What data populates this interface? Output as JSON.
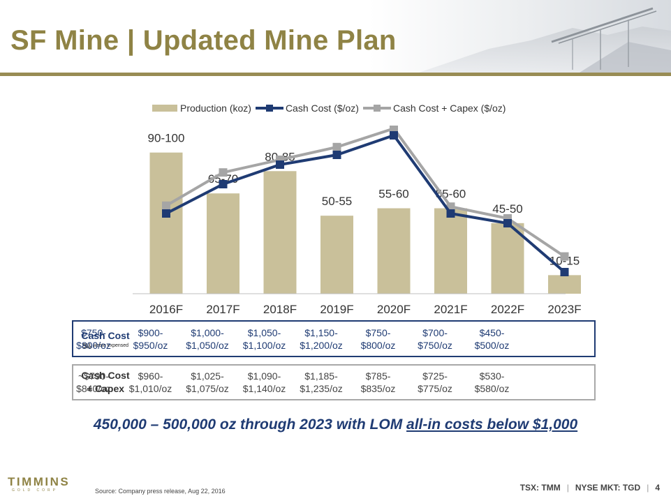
{
  "slide": {
    "title": "SF Mine | Updated Mine Plan",
    "tagline_main": "450,000 – 500,000 oz through 2023 with LOM ",
    "tagline_underlined": "all-in costs below $1,000",
    "source": "Source:  Company press release, Aug 22, 2016",
    "logo_text": "TIMMINS",
    "logo_subtext": "GOLD CORP",
    "ticker_tsx": "TSX: TMM",
    "ticker_nyse": "NYSE MKT: TGD",
    "page_number": "4"
  },
  "legend": {
    "production": "Production (koz)",
    "cash_cost": "Cash Cost ($/oz)",
    "capex": "Cash Cost + Capex ($/oz)"
  },
  "chart_data": {
    "type": "bar",
    "categories": [
      "2016F",
      "2017F",
      "2018F",
      "2019F",
      "2020F",
      "2021F",
      "2022F",
      "2023F"
    ],
    "bar_labels": [
      "90-100",
      "65-70",
      "80-85",
      "50-55",
      "55-60",
      "55-60",
      "45-50",
      "10-15"
    ],
    "series": [
      {
        "name": "Production (koz)",
        "type": "bar",
        "values": [
          95,
          67.5,
          82.5,
          52.5,
          57.5,
          57.5,
          47.5,
          12.5
        ]
      },
      {
        "name": "Cash Cost ($/oz)",
        "type": "line",
        "values": [
          775,
          925,
          1025,
          1075,
          1175,
          775,
          725,
          475
        ]
      },
      {
        "name": "Cash Cost + Capex ($/oz)",
        "type": "line",
        "values": [
          815,
          985,
          1050,
          1115,
          1210,
          810,
          750,
          555
        ]
      }
    ],
    "legend_position": "top",
    "grid": false,
    "colors": {
      "bar": "#c9c09a",
      "cash_cost": "#1f3b73",
      "capex": "#a5a5a5"
    }
  },
  "cash_cost_table": {
    "label": "Cash Cost",
    "note_underlined": "ALL",
    "note_rest": " waste expensed",
    "values": [
      [
        "$750-",
        "$800/oz"
      ],
      [
        "$900-",
        "$950/oz"
      ],
      [
        "$1,000-",
        "$1,050/oz"
      ],
      [
        "$1,050-",
        "$1,100/oz"
      ],
      [
        "$1,150-",
        "$1,200/oz"
      ],
      [
        "$750-",
        "$800/oz"
      ],
      [
        "$700-",
        "$750/oz"
      ],
      [
        "$450-",
        "$500/oz"
      ]
    ]
  },
  "capex_table": {
    "label_line1": "Cash Cost",
    "label_line2": "+ Capex",
    "values": [
      [
        "~$790-",
        "$840/oz"
      ],
      [
        "$960-",
        "$1,010/oz"
      ],
      [
        "$1,025-",
        "$1,075/oz"
      ],
      [
        "$1,090-",
        "$1,140/oz"
      ],
      [
        "$1,185-",
        "$1,235/oz"
      ],
      [
        "$785-",
        "$835/oz"
      ],
      [
        "$725-",
        "$775/oz"
      ],
      [
        "$530-",
        "$580/oz"
      ]
    ]
  }
}
